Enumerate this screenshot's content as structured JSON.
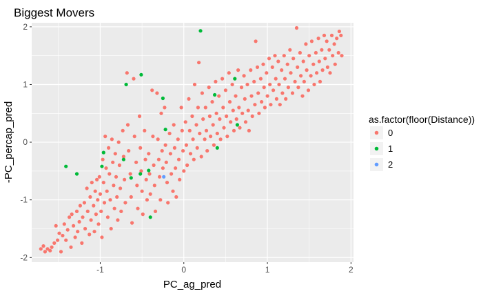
{
  "chart_data": {
    "type": "scatter",
    "title": "Biggest Movers",
    "xlabel": "PC_ag_pred",
    "ylabel": "-PC_percap_pred",
    "xlim": [
      -1.82,
      2.03
    ],
    "ylim": [
      -2.08,
      2.07
    ],
    "xticks": [
      -1,
      0,
      1,
      2
    ],
    "yticks": [
      -2,
      -1,
      0,
      1,
      2
    ],
    "xtick_labels": [
      "-1",
      "0",
      "1",
      "2"
    ],
    "ytick_labels": [
      "-2",
      "-1",
      "0",
      "1",
      "2"
    ],
    "grid": true,
    "background": "#ebebeb",
    "gridline_color": "#ffffff",
    "legend": {
      "title": "as.factor(floor(Distance))",
      "position": "right",
      "entries": [
        {
          "label": "0",
          "color": "#f8766d"
        },
        {
          "label": "1",
          "color": "#00ba38"
        },
        {
          "label": "2",
          "color": "#619cff"
        }
      ]
    },
    "series": [
      {
        "name": "0",
        "color": "#f8766d",
        "points": [
          [
            -1.71,
            -1.85
          ],
          [
            -1.68,
            -1.8
          ],
          [
            -1.66,
            -1.9
          ],
          [
            -1.63,
            -1.85
          ],
          [
            -1.6,
            -1.88
          ],
          [
            -1.58,
            -1.82
          ],
          [
            -1.55,
            -1.75
          ],
          [
            -1.53,
            -1.45
          ],
          [
            -1.51,
            -1.7
          ],
          [
            -1.49,
            -1.58
          ],
          [
            -1.47,
            -1.9
          ],
          [
            -1.45,
            -1.62
          ],
          [
            -1.43,
            -1.42
          ],
          [
            -1.41,
            -1.7
          ],
          [
            -1.39,
            -1.52
          ],
          [
            -1.37,
            -1.3
          ],
          [
            -1.35,
            -1.82
          ],
          [
            -1.34,
            -1.25
          ],
          [
            -1.32,
            -1.45
          ],
          [
            -1.3,
            -1.65
          ],
          [
            -1.28,
            -1.2
          ],
          [
            -1.27,
            -1.55
          ],
          [
            -1.25,
            -1.38
          ],
          [
            -1.24,
            -1.1
          ],
          [
            -1.22,
            -1.75
          ],
          [
            -1.21,
            -1.3
          ],
          [
            -1.19,
            -1.05
          ],
          [
            -1.18,
            -1.5
          ],
          [
            -1.16,
            -0.8
          ],
          [
            -1.15,
            -1.2
          ],
          [
            -1.13,
            -1.6
          ],
          [
            -1.12,
            -0.95
          ],
          [
            -1.11,
            -1.35
          ],
          [
            -1.1,
            -0.7
          ],
          [
            -1.08,
            -1.1
          ],
          [
            -1.07,
            -1.55
          ],
          [
            -1.06,
            -0.85
          ],
          [
            -1.05,
            -1.25
          ],
          [
            -1.04,
            -0.65
          ],
          [
            -1.03,
            -1.0
          ],
          [
            -1.02,
            -1.42
          ],
          [
            -1.01,
            -0.6
          ],
          [
            -1.0,
            -0.9
          ],
          [
            -0.99,
            -1.2
          ],
          [
            -0.98,
            -1.65
          ],
          [
            -0.97,
            -0.3
          ],
          [
            -0.96,
            -0.7
          ],
          [
            -0.95,
            -1.05
          ],
          [
            -0.94,
            0.1
          ],
          [
            -0.93,
            -0.45
          ],
          [
            -0.92,
            -0.85
          ],
          [
            -0.91,
            -1.3
          ],
          [
            -0.9,
            -0.1
          ],
          [
            -0.89,
            -0.55
          ],
          [
            -0.88,
            -1.0
          ],
          [
            -0.87,
            -1.5
          ],
          [
            -0.86,
            0.05
          ],
          [
            -0.85,
            -0.35
          ],
          [
            -0.84,
            -0.75
          ],
          [
            -0.83,
            -1.15
          ],
          [
            -0.82,
            -0.2
          ],
          [
            -0.81,
            -0.6
          ],
          [
            -0.8,
            -0.95
          ],
          [
            -0.79,
            -1.35
          ],
          [
            -0.78,
            0.0
          ],
          [
            -0.77,
            -0.4
          ],
          [
            -0.76,
            -0.8
          ],
          [
            -0.75,
            -1.2
          ],
          [
            -0.73,
            0.2
          ],
          [
            -0.72,
            -0.25
          ],
          [
            -0.71,
            -0.65
          ],
          [
            -0.7,
            -1.05
          ],
          [
            -0.68,
            1.2
          ],
          [
            -0.67,
            0.3
          ],
          [
            -0.66,
            -0.15
          ],
          [
            -0.64,
            -0.55
          ],
          [
            -0.63,
            -0.95
          ],
          [
            -0.62,
            -1.4
          ],
          [
            -0.6,
            1.1
          ],
          [
            -0.59,
            0.1
          ],
          [
            -0.57,
            -0.35
          ],
          [
            -0.56,
            -0.75
          ],
          [
            -0.55,
            -1.15
          ],
          [
            -0.53,
            0.45
          ],
          [
            -0.52,
            -0.1
          ],
          [
            -0.51,
            -0.5
          ],
          [
            -0.5,
            -0.85
          ],
          [
            -0.49,
            -1.25
          ],
          [
            -0.47,
            0.2
          ],
          [
            -0.46,
            -0.3
          ],
          [
            -0.45,
            -0.65
          ],
          [
            -0.44,
            -1.0
          ],
          [
            -0.42,
            -0.2
          ],
          [
            -0.41,
            -0.55
          ],
          [
            -0.4,
            -0.9
          ],
          [
            -0.38,
            0.9
          ],
          [
            -0.37,
            0.1
          ],
          [
            -0.36,
            -0.4
          ],
          [
            -0.35,
            -0.75
          ],
          [
            -0.34,
            -1.2
          ],
          [
            -0.32,
            0.85
          ],
          [
            -0.31,
            0.05
          ],
          [
            -0.3,
            -0.3
          ],
          [
            -0.29,
            -0.6
          ],
          [
            -0.28,
            -1.0
          ],
          [
            -0.27,
            0.5
          ],
          [
            -0.26,
            -0.15
          ],
          [
            -0.25,
            -0.45
          ],
          [
            -0.23,
            0.6
          ],
          [
            -0.22,
            -0.05
          ],
          [
            -0.21,
            -0.35
          ],
          [
            -0.2,
            -0.7
          ],
          [
            -0.19,
            -1.05
          ],
          [
            -0.17,
            0.15
          ],
          [
            -0.16,
            -0.2
          ],
          [
            -0.15,
            -0.55
          ],
          [
            -0.13,
            -0.85
          ],
          [
            -0.12,
            0.3
          ],
          [
            -0.11,
            -0.1
          ],
          [
            -0.1,
            -0.45
          ],
          [
            -0.09,
            -0.95
          ],
          [
            -0.07,
            0.05
          ],
          [
            -0.06,
            -0.3
          ],
          [
            -0.05,
            -0.65
          ],
          [
            -0.03,
            0.6
          ],
          [
            -0.02,
            0.2
          ],
          [
            -0.01,
            -0.15
          ],
          [
            0.0,
            -0.5
          ],
          [
            0.02,
            0.35
          ],
          [
            0.03,
            -0.05
          ],
          [
            0.04,
            -0.4
          ],
          [
            0.06,
            0.75
          ],
          [
            0.07,
            0.2
          ],
          [
            0.08,
            -0.2
          ],
          [
            0.1,
            0.45
          ],
          [
            0.11,
            0.05
          ],
          [
            0.12,
            -0.3
          ],
          [
            0.13,
            1.0
          ],
          [
            0.15,
            0.3
          ],
          [
            0.16,
            -0.1
          ],
          [
            0.17,
            0.6
          ],
          [
            0.18,
            1.38
          ],
          [
            0.19,
            0.15
          ],
          [
            0.21,
            -0.25
          ],
          [
            0.22,
            0.85
          ],
          [
            0.23,
            0.4
          ],
          [
            0.25,
            0.05
          ],
          [
            0.26,
            0.6
          ],
          [
            0.27,
            0.2
          ],
          [
            0.28,
            -0.15
          ],
          [
            0.3,
            0.95
          ],
          [
            0.31,
            0.45
          ],
          [
            0.32,
            0.1
          ],
          [
            0.34,
            0.7
          ],
          [
            0.35,
            0.3
          ],
          [
            0.36,
            -0.05
          ],
          [
            0.38,
            1.05
          ],
          [
            0.39,
            0.5
          ],
          [
            0.4,
            0.15
          ],
          [
            0.42,
            0.8
          ],
          [
            0.43,
            0.4
          ],
          [
            0.44,
            0.05
          ],
          [
            0.46,
            1.1
          ],
          [
            0.47,
            0.6
          ],
          [
            0.48,
            0.25
          ],
          [
            0.5,
            0.9
          ],
          [
            0.51,
            0.45
          ],
          [
            0.52,
            0.1
          ],
          [
            0.54,
            1.2
          ],
          [
            0.55,
            0.7
          ],
          [
            0.56,
            0.35
          ],
          [
            0.58,
            1.0
          ],
          [
            0.59,
            0.55
          ],
          [
            0.6,
            0.2
          ],
          [
            0.62,
            0.8
          ],
          [
            0.63,
            0.4
          ],
          [
            0.65,
            1.25
          ],
          [
            0.66,
            0.6
          ],
          [
            0.67,
            0.25
          ],
          [
            0.69,
            0.95
          ],
          [
            0.7,
            0.5
          ],
          [
            0.72,
            1.15
          ],
          [
            0.73,
            0.75
          ],
          [
            0.74,
            0.35
          ],
          [
            0.76,
            1.0
          ],
          [
            0.77,
            0.55
          ],
          [
            0.78,
            0.2
          ],
          [
            0.8,
            1.25
          ],
          [
            0.81,
            0.8
          ],
          [
            0.82,
            0.45
          ],
          [
            0.84,
            1.05
          ],
          [
            0.85,
            0.65
          ],
          [
            0.86,
            1.75
          ],
          [
            0.88,
            1.3
          ],
          [
            0.89,
            0.85
          ],
          [
            0.9,
            0.5
          ],
          [
            0.92,
            1.1
          ],
          [
            0.93,
            0.7
          ],
          [
            0.95,
            1.35
          ],
          [
            0.96,
            0.95
          ],
          [
            0.97,
            0.6
          ],
          [
            0.99,
            1.2
          ],
          [
            1.0,
            0.8
          ],
          [
            1.02,
            1.45
          ],
          [
            1.03,
            1.0
          ],
          [
            1.04,
            0.65
          ],
          [
            1.06,
            1.3
          ],
          [
            1.07,
            0.9
          ],
          [
            1.09,
            1.5
          ],
          [
            1.1,
            1.1
          ],
          [
            1.11,
            0.75
          ],
          [
            1.13,
            1.4
          ],
          [
            1.14,
            1.0
          ],
          [
            1.15,
            0.65
          ],
          [
            1.17,
            1.25
          ],
          [
            1.18,
            0.85
          ],
          [
            1.2,
            1.5
          ],
          [
            1.21,
            1.1
          ],
          [
            1.22,
            0.75
          ],
          [
            1.24,
            1.35
          ],
          [
            1.25,
            0.95
          ],
          [
            1.27,
            1.6
          ],
          [
            1.28,
            1.2
          ],
          [
            1.3,
            0.85
          ],
          [
            1.31,
            1.45
          ],
          [
            1.33,
            1.05
          ],
          [
            1.35,
            1.98
          ],
          [
            1.36,
            1.3
          ],
          [
            1.37,
            0.95
          ],
          [
            1.39,
            1.55
          ],
          [
            1.4,
            1.15
          ],
          [
            1.42,
            0.8
          ],
          [
            1.43,
            1.4
          ],
          [
            1.44,
            1.05
          ],
          [
            1.46,
            1.7
          ],
          [
            1.47,
            1.25
          ],
          [
            1.49,
            0.9
          ],
          [
            1.5,
            1.5
          ],
          [
            1.52,
            1.15
          ],
          [
            1.53,
            1.75
          ],
          [
            1.55,
            1.35
          ],
          [
            1.56,
            1.0
          ],
          [
            1.58,
            1.55
          ],
          [
            1.59,
            1.2
          ],
          [
            1.61,
            1.8
          ],
          [
            1.62,
            1.4
          ],
          [
            1.63,
            1.05
          ],
          [
            1.65,
            1.6
          ],
          [
            1.66,
            1.25
          ],
          [
            1.68,
            1.85
          ],
          [
            1.69,
            1.45
          ],
          [
            1.71,
            1.75
          ],
          [
            1.72,
            1.3
          ],
          [
            1.74,
            1.6
          ],
          [
            1.75,
            1.2
          ],
          [
            1.77,
            1.85
          ],
          [
            1.78,
            1.5
          ],
          [
            1.8,
            1.7
          ],
          [
            1.81,
            1.35
          ],
          [
            1.83,
            1.8
          ],
          [
            1.85,
            1.55
          ],
          [
            1.86,
            1.92
          ],
          [
            1.88,
            1.85
          ],
          [
            1.89,
            1.5
          ]
        ]
      },
      {
        "name": "1",
        "color": "#00ba38",
        "points": [
          [
            -1.41,
            -0.42
          ],
          [
            -1.28,
            -0.55
          ],
          [
            -0.98,
            -0.42
          ],
          [
            -0.96,
            -0.18
          ],
          [
            -0.72,
            -0.3
          ],
          [
            -0.69,
            1.0
          ],
          [
            -0.51,
            1.17
          ],
          [
            -0.63,
            -0.62
          ],
          [
            -0.52,
            -0.55
          ],
          [
            -0.42,
            -0.49
          ],
          [
            -0.4,
            -1.3
          ],
          [
            -0.25,
            0.76
          ],
          [
            -0.22,
            0.22
          ],
          [
            0.2,
            1.93
          ],
          [
            0.37,
            0.82
          ],
          [
            0.4,
            -0.1
          ],
          [
            0.61,
            1.1
          ],
          [
            0.64,
            0.3
          ]
        ]
      },
      {
        "name": "2",
        "color": "#619cff",
        "points": [
          [
            -0.24,
            -0.6
          ]
        ]
      }
    ]
  }
}
